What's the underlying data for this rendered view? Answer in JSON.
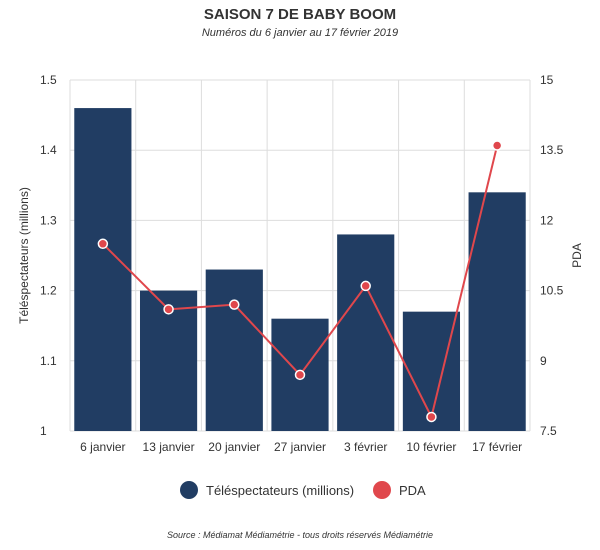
{
  "title": "SAISON 7 DE BABY BOOM",
  "subtitle": "Numéros du 6 janvier au 17 février 2019",
  "source": "Source : Médiamat Médiamétrie - tous droits réservés Médiamétrie",
  "legend": [
    {
      "label": "Téléspectateurs (millions)",
      "color": "#213d63"
    },
    {
      "label": "PDA",
      "color": "#e0474c"
    }
  ],
  "chart_data": {
    "type": "bar+line",
    "categories": [
      "6 janvier",
      "13 janvier",
      "20 janvier",
      "27 janvier",
      "3 février",
      "10 février",
      "17 février"
    ],
    "series": [
      {
        "name": "Téléspectateurs (millions)",
        "type": "bar",
        "axis": "left",
        "color": "#213d63",
        "values": [
          1.46,
          1.2,
          1.23,
          1.16,
          1.28,
          1.17,
          1.34
        ]
      },
      {
        "name": "PDA",
        "type": "line",
        "axis": "right",
        "color": "#e0474c",
        "values": [
          11.5,
          10.1,
          10.2,
          8.7,
          10.6,
          7.8,
          13.6
        ]
      }
    ],
    "ylabel": "Téléspectateurs (millions)",
    "y2label": "PDA",
    "ylim": [
      1,
      1.5
    ],
    "y2lim": [
      7.5,
      15
    ],
    "yticks": [
      "1",
      "1.1",
      "1.2",
      "1.3",
      "1.4",
      "1.5"
    ],
    "y2ticks": [
      "7.5",
      "9",
      "10.5",
      "12",
      "13.5",
      "15"
    ],
    "grid": true,
    "legend_position": "bottom"
  }
}
